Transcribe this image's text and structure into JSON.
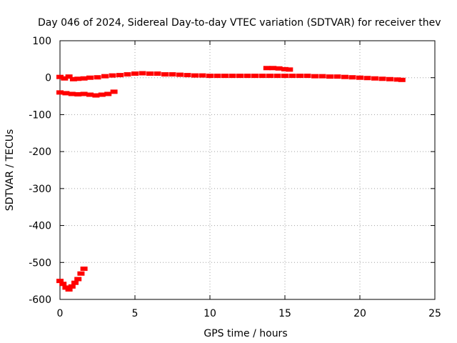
{
  "chart_data": {
    "type": "scatter",
    "title": "Day 046 of 2024, Sidereal Day-to-day VTEC variation (SDTVAR) for receiver thev",
    "xlabel": "GPS time / hours",
    "ylabel": "SDTVAR / TECUs",
    "xlim": [
      0,
      25
    ],
    "ylim": [
      -600,
      100
    ],
    "xticks": [
      0,
      5,
      10,
      15,
      20,
      25
    ],
    "yticks": [
      100,
      0,
      -100,
      -200,
      -300,
      -400,
      -500,
      -600
    ],
    "grid": true,
    "legend": "none",
    "series_color": "#ff0000",
    "series": [
      {
        "values": [
          [
            0.0,
            2
          ],
          [
            0.3,
            -2
          ],
          [
            0.6,
            3
          ],
          [
            0.9,
            -4
          ],
          [
            1.2,
            -3
          ],
          [
            1.6,
            -2
          ],
          [
            2.0,
            0
          ],
          [
            2.5,
            1
          ],
          [
            3.0,
            4
          ],
          [
            3.5,
            6
          ],
          [
            4.0,
            7
          ],
          [
            4.5,
            9
          ],
          [
            5.0,
            11
          ],
          [
            5.5,
            12
          ],
          [
            6.0,
            11
          ],
          [
            6.5,
            11
          ],
          [
            7.0,
            9
          ],
          [
            7.5,
            9
          ],
          [
            8.0,
            8
          ],
          [
            8.5,
            7
          ],
          [
            9.0,
            6
          ],
          [
            9.5,
            6
          ],
          [
            10.0,
            5
          ],
          [
            10.5,
            5
          ],
          [
            11.0,
            5
          ],
          [
            11.5,
            5
          ],
          [
            12.0,
            5
          ],
          [
            12.5,
            5
          ],
          [
            13.0,
            5
          ],
          [
            13.5,
            5
          ],
          [
            14.0,
            5
          ],
          [
            14.5,
            5
          ],
          [
            15.0,
            5
          ],
          [
            15.5,
            5
          ],
          [
            16.0,
            5
          ],
          [
            16.5,
            5
          ],
          [
            17.0,
            4
          ],
          [
            17.5,
            4
          ],
          [
            18.0,
            3
          ],
          [
            18.5,
            3
          ],
          [
            19.0,
            2
          ],
          [
            19.5,
            1
          ],
          [
            20.0,
            0
          ],
          [
            20.5,
            -1
          ],
          [
            21.0,
            -2
          ],
          [
            21.5,
            -3
          ],
          [
            22.0,
            -4
          ],
          [
            22.5,
            -5
          ],
          [
            22.8,
            -6
          ]
        ]
      },
      {
        "values": [
          [
            0.0,
            -40
          ],
          [
            0.4,
            -42
          ],
          [
            0.8,
            -44
          ],
          [
            1.2,
            -45
          ],
          [
            1.6,
            -44
          ],
          [
            2.0,
            -46
          ],
          [
            2.4,
            -48
          ],
          [
            2.8,
            -46
          ],
          [
            3.2,
            -44
          ],
          [
            3.6,
            -38
          ]
        ]
      },
      {
        "values": [
          [
            13.8,
            26
          ],
          [
            14.2,
            26
          ],
          [
            14.6,
            25
          ],
          [
            15.0,
            23
          ],
          [
            15.3,
            22
          ]
        ]
      },
      {
        "values": [
          [
            0.0,
            -550
          ],
          [
            0.2,
            -558
          ],
          [
            0.4,
            -568
          ],
          [
            0.6,
            -573
          ],
          [
            0.8,
            -565
          ],
          [
            1.0,
            -555
          ],
          [
            1.2,
            -545
          ],
          [
            1.4,
            -530
          ],
          [
            1.6,
            -517
          ]
        ]
      }
    ]
  }
}
